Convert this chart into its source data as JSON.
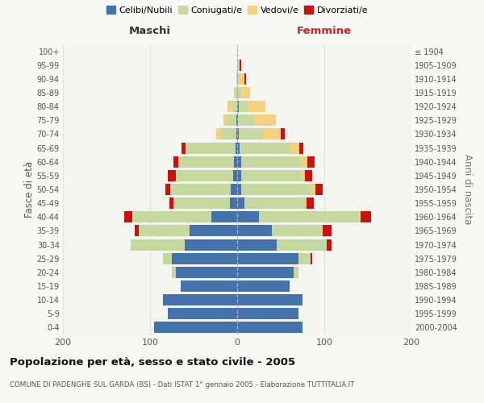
{
  "age_groups": [
    "0-4",
    "5-9",
    "10-14",
    "15-19",
    "20-24",
    "25-29",
    "30-34",
    "35-39",
    "40-44",
    "45-49",
    "50-54",
    "55-59",
    "60-64",
    "65-69",
    "70-74",
    "75-79",
    "80-84",
    "85-89",
    "90-94",
    "95-99",
    "100+"
  ],
  "birth_years": [
    "2000-2004",
    "1995-1999",
    "1990-1994",
    "1985-1989",
    "1980-1984",
    "1975-1979",
    "1970-1974",
    "1965-1969",
    "1960-1964",
    "1955-1959",
    "1950-1954",
    "1945-1949",
    "1940-1944",
    "1935-1939",
    "1930-1934",
    "1925-1929",
    "1920-1924",
    "1915-1919",
    "1910-1914",
    "1905-1909",
    "≤ 1904"
  ],
  "colors": {
    "celibi": "#4472aa",
    "coniugati": "#c5d8a0",
    "vedovi": "#f5d080",
    "divorziati": "#cc1111"
  },
  "maschi": {
    "celibi": [
      95,
      80,
      85,
      65,
      70,
      75,
      60,
      55,
      30,
      8,
      7,
      5,
      4,
      2,
      1,
      1,
      0,
      0,
      0,
      0,
      0
    ],
    "coniugati": [
      0,
      0,
      0,
      0,
      5,
      10,
      62,
      58,
      90,
      65,
      70,
      65,
      62,
      55,
      18,
      10,
      6,
      2,
      1,
      0,
      0
    ],
    "vedovi": [
      0,
      0,
      0,
      0,
      0,
      0,
      0,
      0,
      0,
      0,
      0,
      0,
      2,
      2,
      5,
      5,
      5,
      2,
      0,
      0,
      0
    ],
    "divorziati": [
      0,
      0,
      0,
      0,
      0,
      0,
      0,
      5,
      10,
      5,
      5,
      10,
      5,
      5,
      0,
      0,
      0,
      0,
      0,
      0,
      0
    ]
  },
  "femmine": {
    "celibi": [
      75,
      70,
      75,
      60,
      65,
      70,
      45,
      40,
      25,
      8,
      5,
      5,
      5,
      3,
      2,
      1,
      2,
      0,
      0,
      0,
      0
    ],
    "coniugati": [
      0,
      0,
      0,
      0,
      5,
      14,
      58,
      58,
      115,
      72,
      80,
      68,
      68,
      58,
      28,
      18,
      10,
      5,
      2,
      1,
      0
    ],
    "vedovi": [
      0,
      0,
      0,
      0,
      0,
      0,
      0,
      0,
      2,
      0,
      5,
      5,
      8,
      10,
      20,
      25,
      20,
      10,
      6,
      2,
      0
    ],
    "divorziati": [
      0,
      0,
      0,
      0,
      0,
      2,
      5,
      10,
      12,
      8,
      8,
      8,
      8,
      5,
      5,
      0,
      0,
      0,
      2,
      2,
      0
    ]
  },
  "xlim": 200,
  "title": "Popolazione per età, sesso e stato civile - 2005",
  "subtitle": "COMUNE DI PADENGHE SUL GARDA (BS) - Dati ISTAT 1° gennaio 2005 - Elaborazione TUTTITALIA.IT",
  "ylabel_left": "Fasce di età",
  "ylabel_right": "Anni di nascita",
  "header_left": "Maschi",
  "header_right": "Femmine",
  "bg_color": "#f5f5f0",
  "grid_color": "#cccccc",
  "legend_labels": [
    "Celibi/Nubili",
    "Coniugati/e",
    "Vedovi/e",
    "Divorziati/e"
  ]
}
